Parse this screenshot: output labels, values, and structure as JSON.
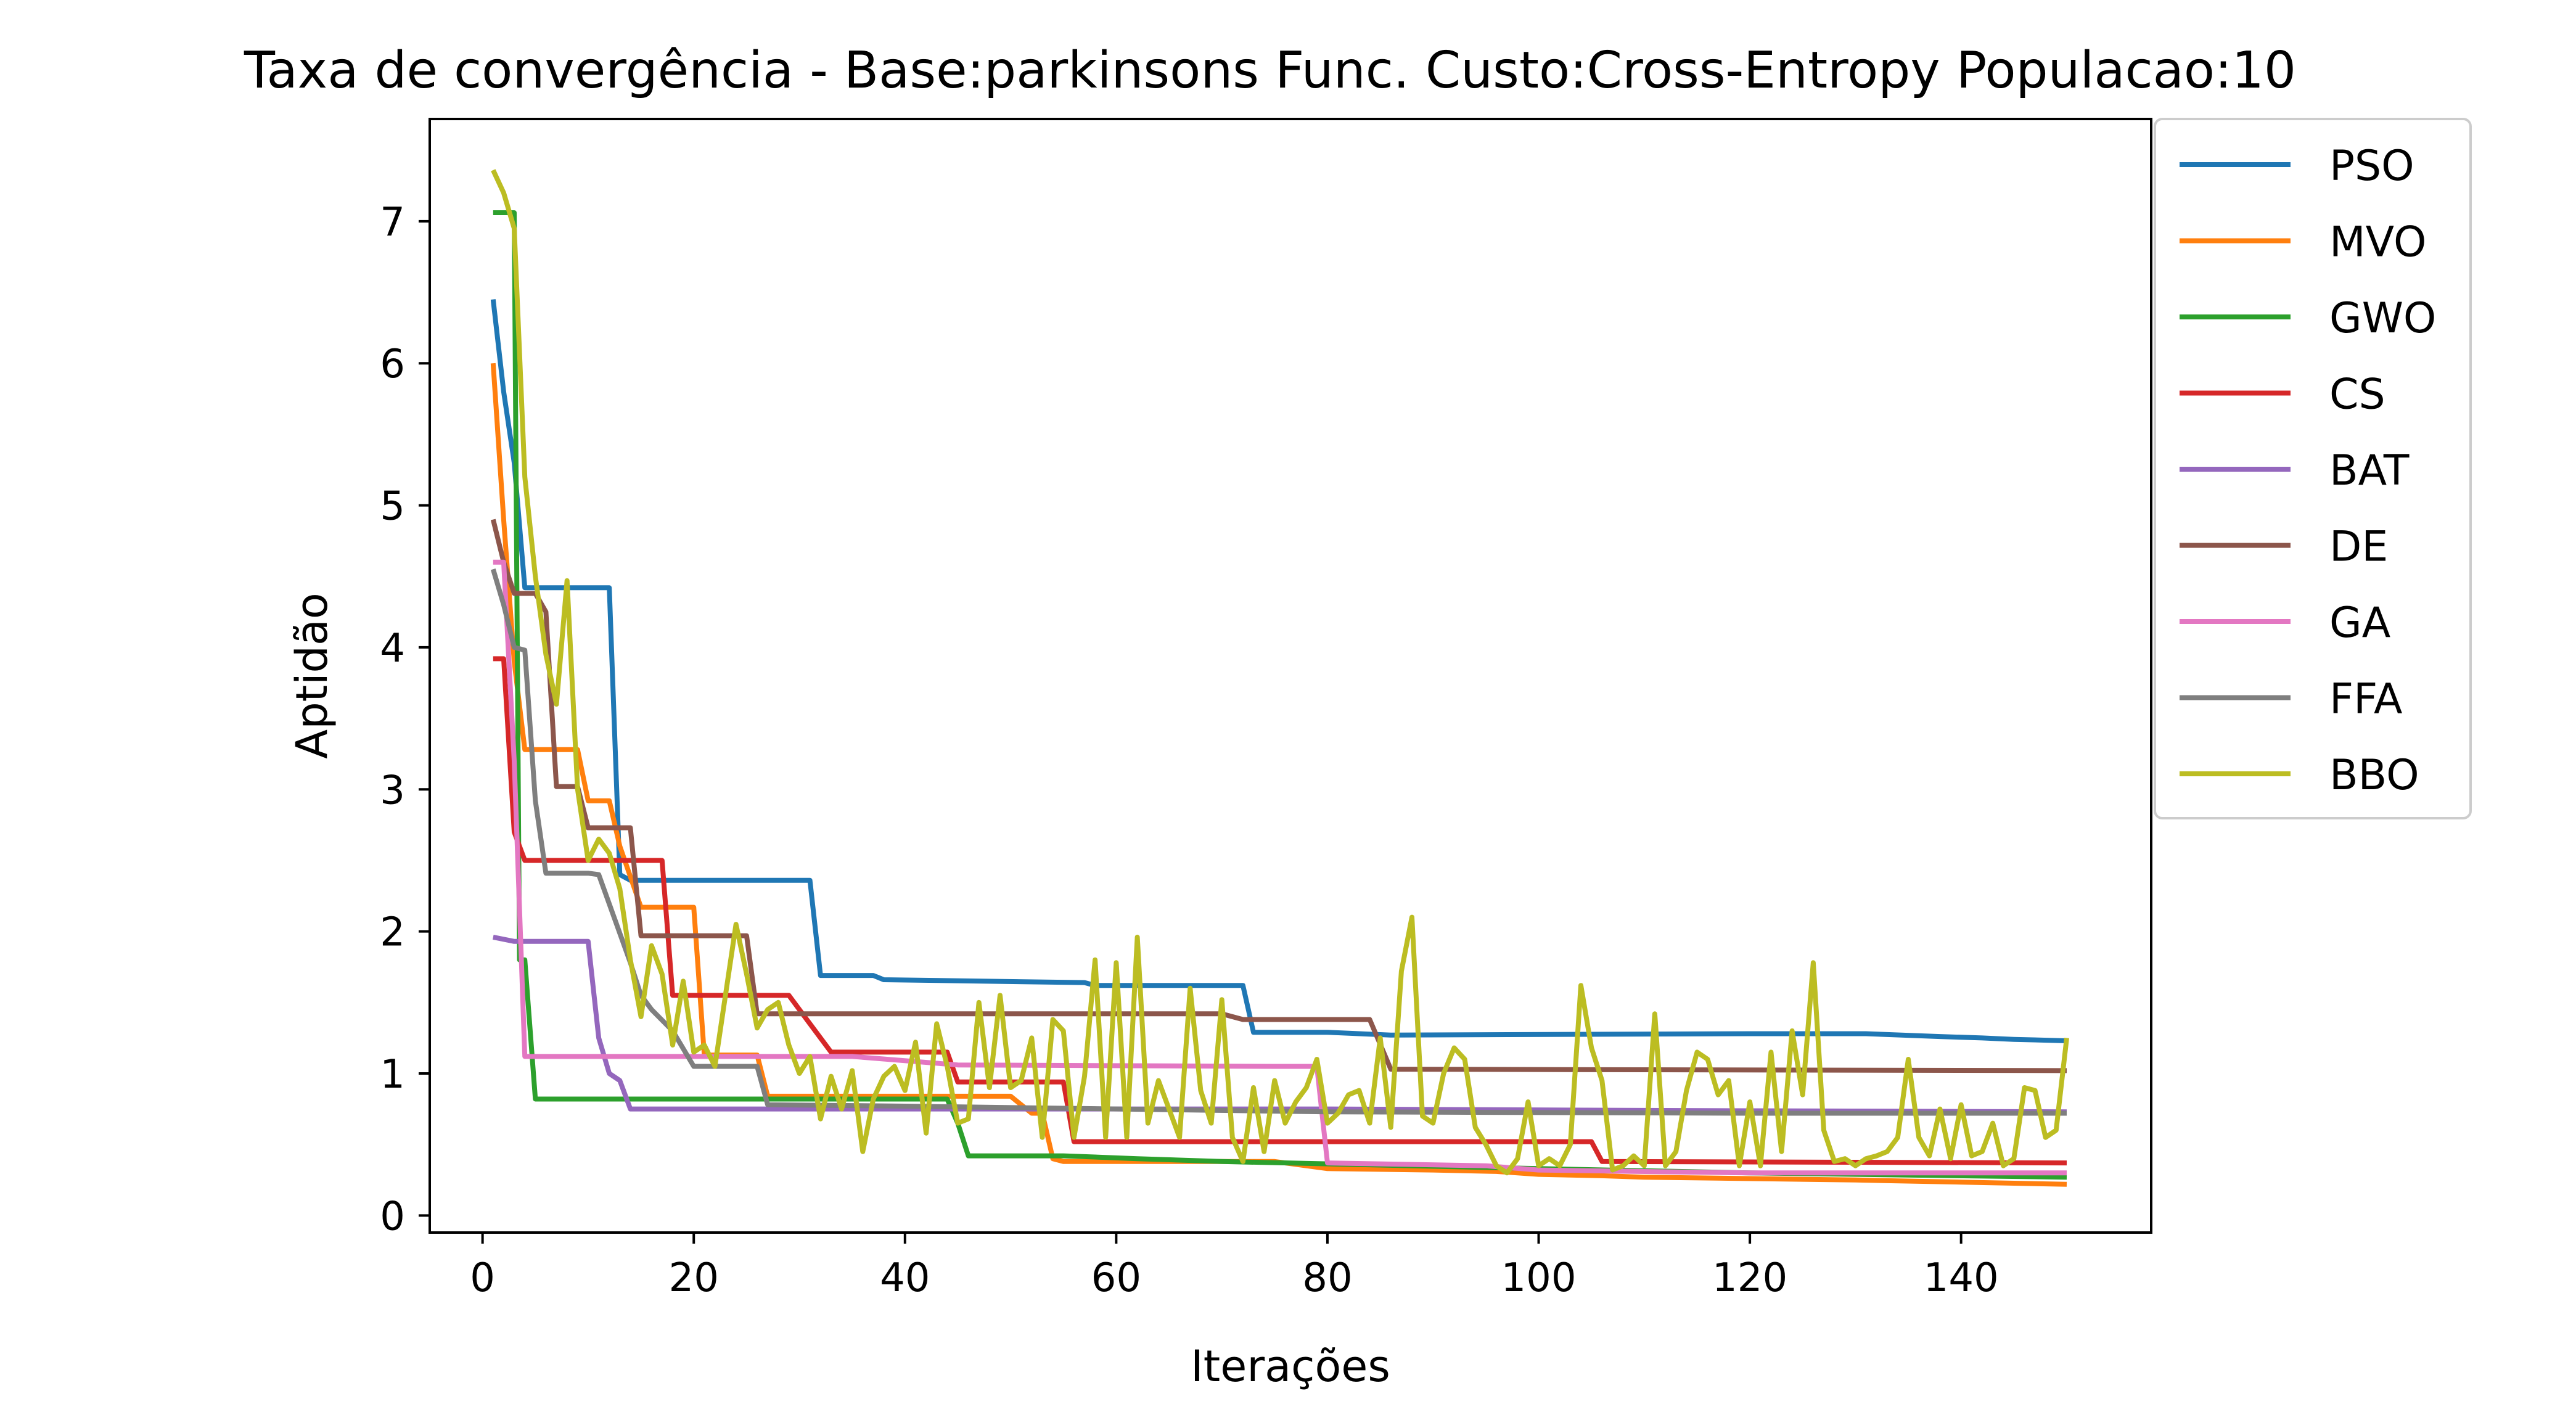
{
  "chart_data": {
    "type": "line",
    "title": "Taxa de convergência - Base:parkinsons Func. Custo:Cross-Entropy Populacao:10",
    "xlabel": "Iterações",
    "ylabel": "Aptidão",
    "xlim": [
      -5,
      158
    ],
    "ylim": [
      -0.12,
      7.72
    ],
    "xticks": [
      0,
      20,
      40,
      60,
      80,
      100,
      120,
      140
    ],
    "yticks": [
      0,
      1,
      2,
      3,
      4,
      5,
      6,
      7
    ],
    "grid": false,
    "legend_position": "outside-top-right",
    "series": [
      {
        "name": "PSO",
        "color": "#1f77b4",
        "points": [
          [
            1,
            6.45
          ],
          [
            2,
            5.8
          ],
          [
            3,
            5.3
          ],
          [
            4,
            4.42
          ],
          [
            12,
            4.42
          ],
          [
            13,
            2.4
          ],
          [
            14,
            2.36
          ],
          [
            31,
            2.36
          ],
          [
            32,
            1.69
          ],
          [
            37,
            1.69
          ],
          [
            38,
            1.66
          ],
          [
            57,
            1.64
          ],
          [
            58,
            1.62
          ],
          [
            72,
            1.62
          ],
          [
            73,
            1.29
          ],
          [
            80,
            1.29
          ],
          [
            86,
            1.27
          ],
          [
            120,
            1.28
          ],
          [
            131,
            1.28
          ],
          [
            138,
            1.26
          ],
          [
            142,
            1.25
          ],
          [
            145,
            1.24
          ],
          [
            150,
            1.23
          ]
        ]
      },
      {
        "name": "MVO",
        "color": "#ff7f0e",
        "points": [
          [
            1,
            6.0
          ],
          [
            2,
            4.9
          ],
          [
            3,
            3.9
          ],
          [
            4,
            3.28
          ],
          [
            9,
            3.28
          ],
          [
            10,
            2.92
          ],
          [
            12,
            2.92
          ],
          [
            13,
            2.6
          ],
          [
            15,
            2.17
          ],
          [
            20,
            2.17
          ],
          [
            21,
            1.13
          ],
          [
            26,
            1.13
          ],
          [
            27,
            0.84
          ],
          [
            50,
            0.84
          ],
          [
            52,
            0.72
          ],
          [
            53,
            0.72
          ],
          [
            54,
            0.4
          ],
          [
            55,
            0.38
          ],
          [
            75,
            0.38
          ],
          [
            80,
            0.33
          ],
          [
            90,
            0.32
          ],
          [
            96,
            0.31
          ],
          [
            100,
            0.29
          ],
          [
            106,
            0.28
          ],
          [
            110,
            0.27
          ],
          [
            130,
            0.25
          ],
          [
            150,
            0.22
          ]
        ]
      },
      {
        "name": "GWO",
        "color": "#2ca02c",
        "points": [
          [
            1,
            7.06
          ],
          [
            3,
            7.06
          ],
          [
            3.5,
            1.8
          ],
          [
            4,
            1.8
          ],
          [
            5,
            0.82
          ],
          [
            44,
            0.82
          ],
          [
            45,
            0.65
          ],
          [
            46,
            0.42
          ],
          [
            55,
            0.42
          ],
          [
            62,
            0.4
          ],
          [
            70,
            0.38
          ],
          [
            82,
            0.36
          ],
          [
            100,
            0.33
          ],
          [
            120,
            0.3
          ],
          [
            150,
            0.27
          ]
        ]
      },
      {
        "name": "CS",
        "color": "#d62728",
        "points": [
          [
            1,
            3.92
          ],
          [
            2,
            3.92
          ],
          [
            3,
            2.7
          ],
          [
            4,
            2.5
          ],
          [
            9,
            2.5
          ],
          [
            10,
            2.5
          ],
          [
            17,
            2.5
          ],
          [
            18,
            1.55
          ],
          [
            29,
            1.55
          ],
          [
            31,
            1.35
          ],
          [
            33,
            1.15
          ],
          [
            44,
            1.15
          ],
          [
            45,
            0.94
          ],
          [
            55,
            0.94
          ],
          [
            56,
            0.52
          ],
          [
            80,
            0.52
          ],
          [
            105,
            0.52
          ],
          [
            106,
            0.38
          ],
          [
            150,
            0.37
          ]
        ]
      },
      {
        "name": "BAT",
        "color": "#9467bd",
        "points": [
          [
            1,
            1.96
          ],
          [
            3,
            1.93
          ],
          [
            10,
            1.93
          ],
          [
            11,
            1.25
          ],
          [
            12,
            1.0
          ],
          [
            13,
            0.95
          ],
          [
            14,
            0.75
          ],
          [
            25,
            0.75
          ],
          [
            30,
            0.75
          ],
          [
            80,
            0.75
          ],
          [
            110,
            0.74
          ],
          [
            150,
            0.73
          ]
        ]
      },
      {
        "name": "DE",
        "color": "#8c564b",
        "points": [
          [
            1,
            4.9
          ],
          [
            2,
            4.6
          ],
          [
            3,
            4.38
          ],
          [
            5,
            4.38
          ],
          [
            6,
            4.25
          ],
          [
            7,
            3.02
          ],
          [
            9,
            3.02
          ],
          [
            10,
            2.73
          ],
          [
            14,
            2.73
          ],
          [
            15,
            1.97
          ],
          [
            25,
            1.97
          ],
          [
            26,
            1.42
          ],
          [
            40,
            1.42
          ],
          [
            70,
            1.42
          ],
          [
            72,
            1.38
          ],
          [
            84,
            1.38
          ],
          [
            86,
            1.03
          ],
          [
            150,
            1.02
          ]
        ]
      },
      {
        "name": "GA",
        "color": "#e377c2",
        "points": [
          [
            1,
            4.6
          ],
          [
            2,
            4.6
          ],
          [
            3,
            3.2
          ],
          [
            4,
            1.12
          ],
          [
            35,
            1.12
          ],
          [
            45,
            1.06
          ],
          [
            75,
            1.05
          ],
          [
            79,
            1.05
          ],
          [
            80,
            0.37
          ],
          [
            95,
            0.35
          ],
          [
            100,
            0.32
          ],
          [
            120,
            0.3
          ],
          [
            150,
            0.3
          ]
        ]
      },
      {
        "name": "FFA",
        "color": "#7f7f7f",
        "points": [
          [
            1,
            4.55
          ],
          [
            2,
            4.3
          ],
          [
            3,
            4.0
          ],
          [
            4,
            3.98
          ],
          [
            5,
            2.92
          ],
          [
            6,
            2.41
          ],
          [
            10,
            2.41
          ],
          [
            11,
            2.4
          ],
          [
            14,
            1.78
          ],
          [
            15,
            1.55
          ],
          [
            16,
            1.45
          ],
          [
            18,
            1.3
          ],
          [
            20,
            1.05
          ],
          [
            26,
            1.05
          ],
          [
            27,
            0.78
          ],
          [
            40,
            0.77
          ],
          [
            80,
            0.73
          ],
          [
            120,
            0.72
          ],
          [
            150,
            0.72
          ]
        ]
      },
      {
        "name": "BBO",
        "color": "#bcbd22",
        "points": [
          [
            1,
            7.36
          ],
          [
            2,
            7.2
          ],
          [
            3,
            6.95
          ],
          [
            4,
            5.2
          ],
          [
            5,
            4.5
          ],
          [
            6,
            3.95
          ],
          [
            7,
            3.6
          ],
          [
            8,
            4.47
          ],
          [
            9,
            3.0
          ],
          [
            10,
            2.5
          ],
          [
            11,
            2.65
          ],
          [
            12,
            2.55
          ],
          [
            13,
            2.3
          ],
          [
            14,
            1.8
          ],
          [
            15,
            1.4
          ],
          [
            16,
            1.9
          ],
          [
            17,
            1.7
          ],
          [
            18,
            1.2
          ],
          [
            19,
            1.65
          ],
          [
            20,
            1.15
          ],
          [
            21,
            1.2
          ],
          [
            22,
            1.05
          ],
          [
            23,
            1.55
          ],
          [
            24,
            2.05
          ],
          [
            25,
            1.7
          ],
          [
            26,
            1.32
          ],
          [
            27,
            1.45
          ],
          [
            28,
            1.5
          ],
          [
            29,
            1.2
          ],
          [
            30,
            1.0
          ],
          [
            31,
            1.12
          ],
          [
            32,
            0.68
          ],
          [
            33,
            0.98
          ],
          [
            34,
            0.75
          ],
          [
            35,
            1.02
          ],
          [
            36,
            0.45
          ],
          [
            37,
            0.82
          ],
          [
            38,
            0.98
          ],
          [
            39,
            1.05
          ],
          [
            40,
            0.88
          ],
          [
            41,
            1.22
          ],
          [
            42,
            0.58
          ],
          [
            43,
            1.35
          ],
          [
            44,
            1.05
          ],
          [
            45,
            0.65
          ],
          [
            46,
            0.68
          ],
          [
            47,
            1.5
          ],
          [
            48,
            0.9
          ],
          [
            49,
            1.55
          ],
          [
            50,
            0.9
          ],
          [
            51,
            0.95
          ],
          [
            52,
            1.25
          ],
          [
            53,
            0.55
          ],
          [
            54,
            1.38
          ],
          [
            55,
            1.3
          ],
          [
            56,
            0.55
          ],
          [
            57,
            0.98
          ],
          [
            58,
            1.8
          ],
          [
            59,
            0.55
          ],
          [
            60,
            1.78
          ],
          [
            61,
            0.55
          ],
          [
            62,
            1.96
          ],
          [
            63,
            0.65
          ],
          [
            64,
            0.95
          ],
          [
            65,
            0.75
          ],
          [
            66,
            0.55
          ],
          [
            67,
            1.6
          ],
          [
            68,
            0.88
          ],
          [
            69,
            0.65
          ],
          [
            70,
            1.52
          ],
          [
            71,
            0.55
          ],
          [
            72,
            0.38
          ],
          [
            73,
            0.9
          ],
          [
            74,
            0.45
          ],
          [
            75,
            0.95
          ],
          [
            76,
            0.65
          ],
          [
            77,
            0.8
          ],
          [
            78,
            0.9
          ],
          [
            79,
            1.1
          ],
          [
            80,
            0.65
          ],
          [
            81,
            0.72
          ],
          [
            82,
            0.85
          ],
          [
            83,
            0.88
          ],
          [
            84,
            0.65
          ],
          [
            85,
            1.25
          ],
          [
            86,
            0.62
          ],
          [
            87,
            1.72
          ],
          [
            88,
            2.1
          ],
          [
            89,
            0.7
          ],
          [
            90,
            0.65
          ],
          [
            91,
            1.0
          ],
          [
            92,
            1.18
          ],
          [
            93,
            1.1
          ],
          [
            94,
            0.62
          ],
          [
            95,
            0.5
          ],
          [
            96,
            0.35
          ],
          [
            97,
            0.3
          ],
          [
            98,
            0.4
          ],
          [
            99,
            0.8
          ],
          [
            100,
            0.35
          ],
          [
            101,
            0.4
          ],
          [
            102,
            0.35
          ],
          [
            103,
            0.5
          ],
          [
            104,
            1.62
          ],
          [
            105,
            1.18
          ],
          [
            106,
            0.95
          ],
          [
            107,
            0.32
          ],
          [
            108,
            0.35
          ],
          [
            109,
            0.42
          ],
          [
            110,
            0.35
          ],
          [
            111,
            1.42
          ],
          [
            112,
            0.35
          ],
          [
            113,
            0.45
          ],
          [
            114,
            0.88
          ],
          [
            115,
            1.15
          ],
          [
            116,
            1.1
          ],
          [
            117,
            0.85
          ],
          [
            118,
            0.95
          ],
          [
            119,
            0.35
          ],
          [
            120,
            0.8
          ],
          [
            121,
            0.35
          ],
          [
            122,
            1.15
          ],
          [
            123,
            0.45
          ],
          [
            124,
            1.3
          ],
          [
            125,
            0.85
          ],
          [
            126,
            1.78
          ],
          [
            127,
            0.6
          ],
          [
            128,
            0.38
          ],
          [
            129,
            0.4
          ],
          [
            130,
            0.35
          ],
          [
            131,
            0.4
          ],
          [
            132,
            0.42
          ],
          [
            133,
            0.45
          ],
          [
            134,
            0.55
          ],
          [
            135,
            1.1
          ],
          [
            136,
            0.55
          ],
          [
            137,
            0.42
          ],
          [
            138,
            0.75
          ],
          [
            139,
            0.4
          ],
          [
            140,
            0.78
          ],
          [
            141,
            0.42
          ],
          [
            142,
            0.45
          ],
          [
            143,
            0.65
          ],
          [
            144,
            0.35
          ],
          [
            145,
            0.4
          ],
          [
            146,
            0.9
          ],
          [
            147,
            0.88
          ],
          [
            148,
            0.55
          ],
          [
            149,
            0.6
          ],
          [
            150,
            1.25
          ]
        ]
      }
    ]
  }
}
